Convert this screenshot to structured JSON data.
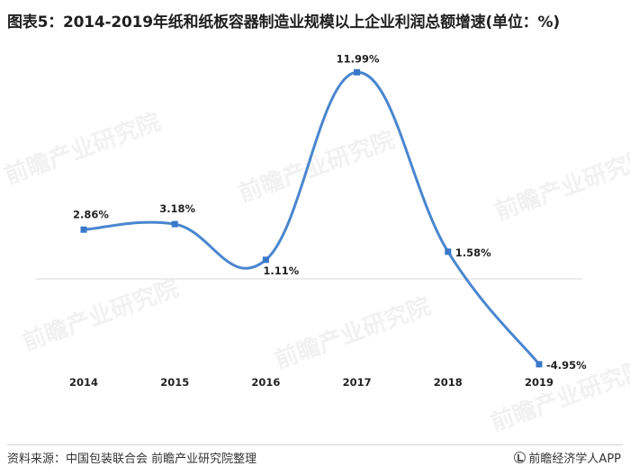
{
  "title": "图表5：2014-2019年纸和纸板容器制造业规模以上企业利润总额增速(单位：%)",
  "watermark": "前瞻产业研究院",
  "footer": {
    "source": "资料来源：中国包装联合会 前瞻产业研究院整理",
    "brand": "前瞻经济学人APP"
  },
  "colors": {
    "line": "#4a86cf",
    "marker": "#3a78c8",
    "zero_line": "#d9d9d9"
  },
  "chart_data": {
    "type": "line",
    "title": "图表5：2014-2019年纸和纸板容器制造业规模以上企业利润总额增速(单位：%)",
    "categories": [
      "2014",
      "2015",
      "2016",
      "2017",
      "2018",
      "2019"
    ],
    "series": [
      {
        "values": [
          2.86,
          3.18,
          1.11,
          11.99,
          1.58,
          -4.95
        ]
      }
    ],
    "data_labels": [
      "2.86%",
      "3.18%",
      "1.11%",
      "11.99%",
      "1.58%",
      "-4.95%"
    ],
    "ylim": [
      -6,
      13
    ],
    "smooth": true,
    "grid": false,
    "legend": "none"
  }
}
